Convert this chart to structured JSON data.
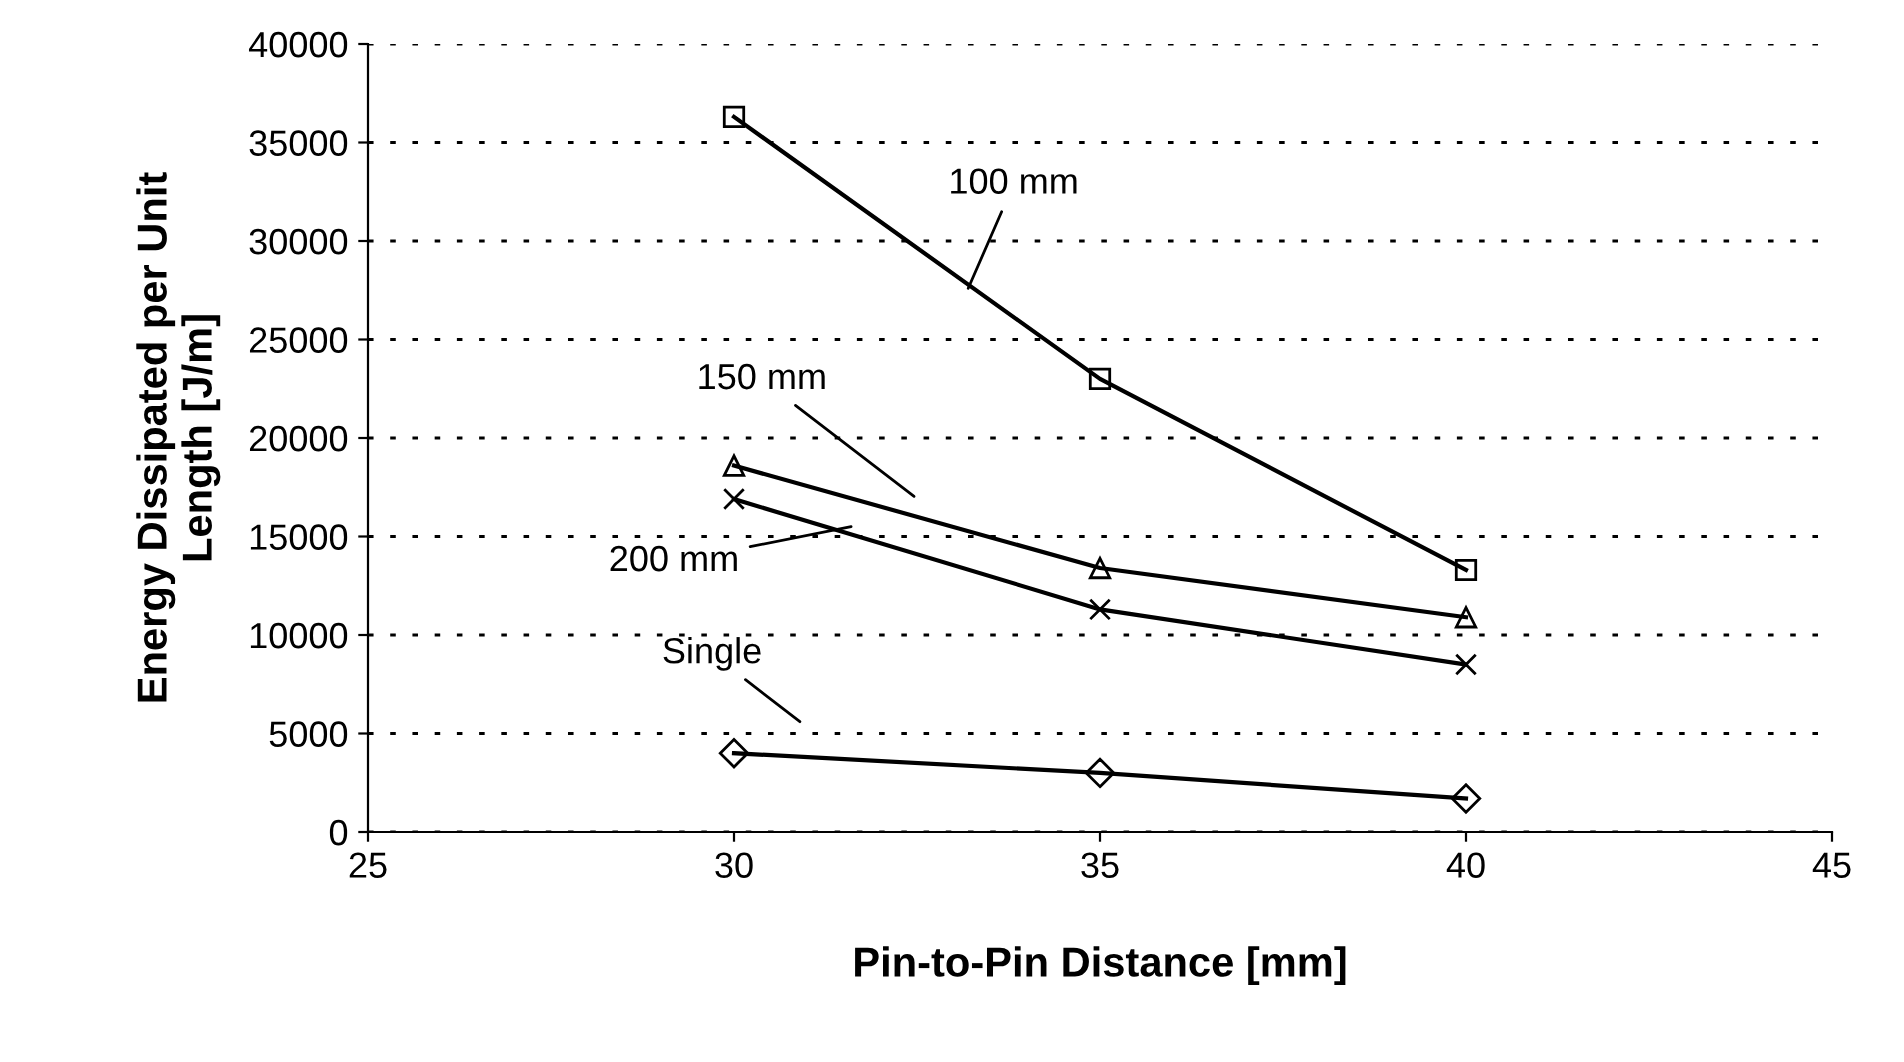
{
  "chart_data": {
    "type": "line",
    "xlabel": "Pin-to-Pin Distance [mm]",
    "ylabel": "Energy Dissipated per Unit\nLength [J/m]",
    "x": [
      30,
      35,
      40
    ],
    "series": [
      {
        "color": "#000000",
        "marker": "square",
        "values": [
          36300,
          23000,
          13300
        ]
      },
      {
        "color": "#000000",
        "marker": "triangle",
        "values": [
          18600,
          13400,
          10900
        ]
      },
      {
        "color": "#000000",
        "marker": "cross",
        "values": [
          16900,
          11300,
          8500
        ]
      },
      {
        "color": "#000000",
        "marker": "diamond",
        "values": [
          4000,
          3000,
          1700
        ]
      }
    ],
    "annotations": [
      {
        "text": "100 mm",
        "x": 33.2,
        "y": 27600
      },
      "150 mm",
      {
        "text": "200 mm",
        "x": 31.6,
        "y": 15500
      },
      "Single"
    ],
    "xlim": [
      25,
      45
    ],
    "xticks": [
      25,
      30,
      35,
      40,
      45
    ],
    "ylim": [
      0,
      40000
    ],
    "yticks": [
      0,
      5000,
      10000,
      15000,
      20000,
      25000,
      30000,
      35000,
      40000
    ],
    "grid": "y",
    "legend": false,
    "line_style": "solid"
  }
}
